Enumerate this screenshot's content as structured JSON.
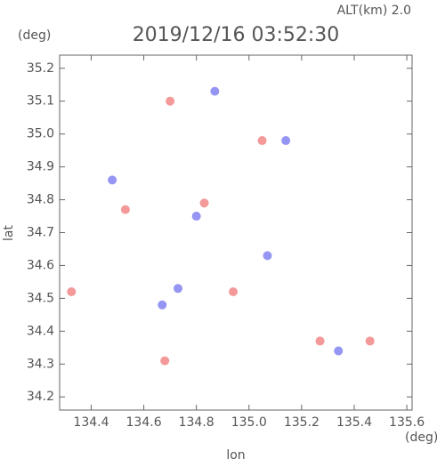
{
  "chart_data": {
    "type": "scatter",
    "title": "2019/12/16 03:52:30",
    "subtitle": "ALT(km) 2.0",
    "y_unit": "(deg)",
    "x_unit": "(deg)",
    "ylabel": "lat",
    "xlabel": "lon",
    "xlim": [
      134.28,
      135.62
    ],
    "ylim": [
      34.16,
      35.24
    ],
    "xticks": [
      134.4,
      134.6,
      134.8,
      {
        "value": 135,
        "label": "135.0"
      },
      135.2,
      135.4,
      135.6
    ],
    "yticks": [
      34.2,
      34.3,
      34.4,
      34.5,
      34.6,
      34.7,
      34.8,
      34.9,
      {
        "value": 35,
        "label": "35.0"
      },
      35.1,
      35.2
    ],
    "series": [
      {
        "color": "#f08080",
        "x": [
          134.325,
          134.68,
          134.7,
          135.46,
          135.27,
          134.83,
          135.05,
          134.94,
          134.53
        ],
        "values": [
          34.52,
          34.31,
          35.1,
          34.37,
          34.37,
          34.79,
          34.98,
          34.52,
          34.77
        ]
      },
      {
        "color": "#7b7bf0",
        "x": [
          134.48,
          134.67,
          134.87,
          135.14,
          135.34,
          134.8,
          135.07,
          134.73
        ],
        "values": [
          34.86,
          34.48,
          35.13,
          34.98,
          34.34,
          34.75,
          34.63,
          34.53
        ]
      }
    ]
  }
}
